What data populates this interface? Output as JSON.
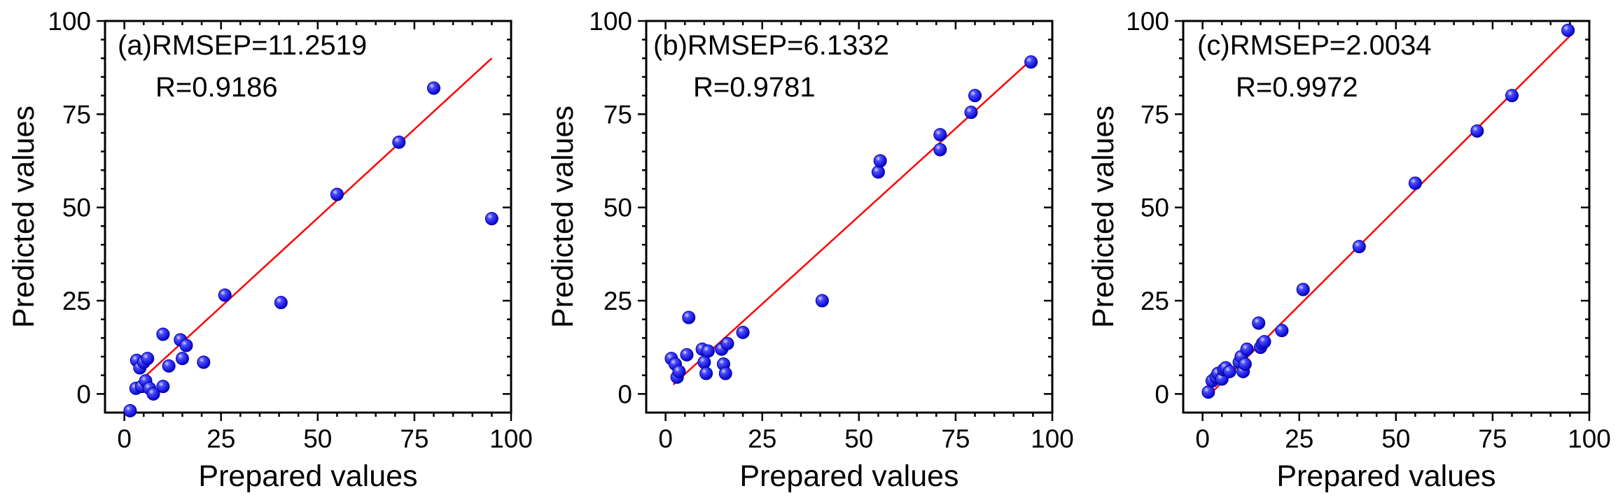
{
  "chart_data": [
    {
      "type": "scatter",
      "panel_label": "(a)",
      "annotation_rmsep": "RMSEP=11.2519",
      "annotation_r": "R=0.9186",
      "xlabel": "Prepared values",
      "ylabel": "Predicted values",
      "xlim": [
        -5,
        100
      ],
      "ylim": [
        -5,
        100
      ],
      "xticks": [
        0,
        25,
        50,
        75,
        100
      ],
      "yticks": [
        0,
        25,
        50,
        75,
        100
      ],
      "fit_line": {
        "x": [
          2,
          95
        ],
        "y": [
          1.5,
          90
        ]
      },
      "points": [
        {
          "x": 1.5,
          "y": -4.5
        },
        {
          "x": 3.0,
          "y": 1.5
        },
        {
          "x": 3.2,
          "y": 9.0
        },
        {
          "x": 4.0,
          "y": 7.0
        },
        {
          "x": 4.5,
          "y": 2.0
        },
        {
          "x": 5.0,
          "y": 8.5
        },
        {
          "x": 5.5,
          "y": 3.5
        },
        {
          "x": 6.0,
          "y": 9.5
        },
        {
          "x": 6.5,
          "y": 1.5
        },
        {
          "x": 7.5,
          "y": 0.0
        },
        {
          "x": 10.0,
          "y": 2.0
        },
        {
          "x": 10.0,
          "y": 16.0
        },
        {
          "x": 11.5,
          "y": 7.5
        },
        {
          "x": 14.5,
          "y": 14.5
        },
        {
          "x": 15.0,
          "y": 9.5
        },
        {
          "x": 16.0,
          "y": 13.0
        },
        {
          "x": 20.5,
          "y": 8.5
        },
        {
          "x": 26.0,
          "y": 26.5
        },
        {
          "x": 40.5,
          "y": 24.5
        },
        {
          "x": 55.0,
          "y": 53.5
        },
        {
          "x": 71.0,
          "y": 67.5
        },
        {
          "x": 80.0,
          "y": 82.0
        },
        {
          "x": 95.0,
          "y": 47.0
        }
      ]
    },
    {
      "type": "scatter",
      "panel_label": "(b)",
      "annotation_rmsep": "RMSEP=6.1332",
      "annotation_r": "R=0.9781",
      "xlabel": "Prepared values",
      "ylabel": "Predicted values",
      "xlim": [
        -5,
        100
      ],
      "ylim": [
        -5,
        100
      ],
      "xticks": [
        0,
        25,
        50,
        75,
        100
      ],
      "yticks": [
        0,
        25,
        50,
        75,
        100
      ],
      "fit_line": {
        "x": [
          2,
          95
        ],
        "y": [
          2.5,
          90
        ]
      },
      "points": [
        {
          "x": 1.5,
          "y": 9.5
        },
        {
          "x": 2.5,
          "y": 8.0
        },
        {
          "x": 3.0,
          "y": 4.5
        },
        {
          "x": 3.5,
          "y": 6.0
        },
        {
          "x": 5.5,
          "y": 10.5
        },
        {
          "x": 6.0,
          "y": 20.5
        },
        {
          "x": 9.5,
          "y": 12.0
        },
        {
          "x": 10.0,
          "y": 8.5
        },
        {
          "x": 10.5,
          "y": 5.5
        },
        {
          "x": 11.0,
          "y": 11.5
        },
        {
          "x": 14.5,
          "y": 12.0
        },
        {
          "x": 15.0,
          "y": 8.0
        },
        {
          "x": 15.5,
          "y": 5.5
        },
        {
          "x": 16.0,
          "y": 13.5
        },
        {
          "x": 20.0,
          "y": 16.5
        },
        {
          "x": 40.5,
          "y": 25.0
        },
        {
          "x": 55.0,
          "y": 59.5
        },
        {
          "x": 55.5,
          "y": 62.5
        },
        {
          "x": 71.0,
          "y": 65.5
        },
        {
          "x": 71.0,
          "y": 69.5
        },
        {
          "x": 79.0,
          "y": 75.5
        },
        {
          "x": 80.0,
          "y": 80.0
        },
        {
          "x": 94.5,
          "y": 89.0
        }
      ]
    },
    {
      "type": "scatter",
      "panel_label": "(c)",
      "annotation_rmsep": "RMSEP=2.0034",
      "annotation_r": "R=0.9972",
      "xlabel": "Prepared values",
      "ylabel": "Predicted values",
      "xlim": [
        -5,
        100
      ],
      "ylim": [
        -5,
        100
      ],
      "xticks": [
        0,
        25,
        50,
        75,
        100
      ],
      "yticks": [
        0,
        25,
        50,
        75,
        100
      ],
      "fit_line": {
        "x": [
          2,
          95
        ],
        "y": [
          0,
          96
        ]
      },
      "points": [
        {
          "x": 1.5,
          "y": 0.5
        },
        {
          "x": 2.5,
          "y": 3.5
        },
        {
          "x": 3.5,
          "y": 4.5
        },
        {
          "x": 4.0,
          "y": 5.5
        },
        {
          "x": 5.0,
          "y": 4.0
        },
        {
          "x": 5.5,
          "y": 6.5
        },
        {
          "x": 6.0,
          "y": 7.0
        },
        {
          "x": 7.0,
          "y": 6.0
        },
        {
          "x": 9.5,
          "y": 8.5
        },
        {
          "x": 10.0,
          "y": 10.0
        },
        {
          "x": 10.5,
          "y": 6.0
        },
        {
          "x": 11.0,
          "y": 8.0
        },
        {
          "x": 11.5,
          "y": 12.0
        },
        {
          "x": 14.5,
          "y": 19.0
        },
        {
          "x": 15.0,
          "y": 12.5
        },
        {
          "x": 15.5,
          "y": 13.5
        },
        {
          "x": 16.0,
          "y": 14.0
        },
        {
          "x": 20.5,
          "y": 17.0
        },
        {
          "x": 26.0,
          "y": 28.0
        },
        {
          "x": 40.5,
          "y": 39.5
        },
        {
          "x": 55.0,
          "y": 56.5
        },
        {
          "x": 71.0,
          "y": 70.5
        },
        {
          "x": 80.0,
          "y": 80.0
        },
        {
          "x": 94.5,
          "y": 97.5
        }
      ]
    }
  ]
}
